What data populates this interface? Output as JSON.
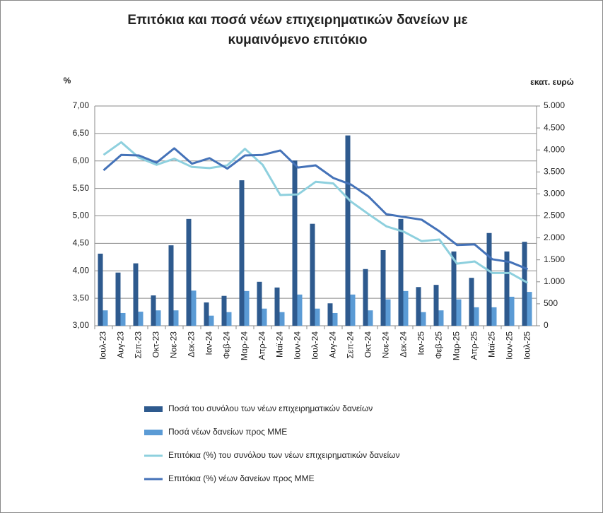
{
  "chart_data": {
    "type": "bar",
    "title": "Επιτόκια και ποσά νέων επιχειρηματικών δανείων με κυμαινόμενο επιτόκιο",
    "y_label": "%",
    "y2_label": "εκατ. ευρώ",
    "categories": [
      "Ιουλ-23",
      "Αυγ-23",
      "Σεπ-23",
      "Οκτ-23",
      "Νοε-23",
      "Δεκ-23",
      "Ιαν-24",
      "Φεβ-24",
      "Μαρ-24",
      "Απρ-24",
      "Μαϊ-24",
      "Ιουν-24",
      "Ιουλ-24",
      "Αυγ-24",
      "Σεπ-24",
      "Οκτ-24",
      "Νοε-24",
      "Δεκ-24",
      "Ιαν-25",
      "Φεβ-25",
      "Μαρ-25",
      "Απρ-25",
      "Μαϊ-25",
      "Ιουν-25",
      "Ιουλ-25"
    ],
    "series": [
      {
        "name": "Ποσά του συνόλου των νέων επιχειρηματικών δανείων",
        "type": "bar",
        "axis": "y2",
        "color": "#2e5a8e",
        "values": [
          1640,
          1210,
          1420,
          690,
          1830,
          2430,
          530,
          680,
          3310,
          1000,
          870,
          3760,
          2320,
          510,
          4330,
          1290,
          1720,
          2430,
          880,
          930,
          1690,
          1090,
          2110,
          1690,
          1910
        ]
      },
      {
        "name": "Ποσά νέων δανείων προς ΜΜΕ",
        "type": "bar",
        "axis": "y2",
        "color": "#5b9bd5",
        "values": [
          350,
          290,
          320,
          350,
          350,
          800,
          230,
          310,
          790,
          390,
          310,
          710,
          390,
          290,
          710,
          350,
          600,
          790,
          310,
          350,
          600,
          420,
          420,
          660,
          770
        ]
      },
      {
        "name": "Επιτόκια (%) του συνόλου των νέων επιχειρηματικών δανείων",
        "type": "line",
        "color": "#8ed0de",
        "values": [
          6.11,
          6.34,
          6.06,
          5.93,
          6.04,
          5.89,
          5.87,
          5.92,
          6.22,
          5.93,
          5.38,
          5.39,
          5.62,
          5.59,
          5.26,
          5.03,
          4.81,
          4.71,
          4.54,
          4.57,
          4.13,
          4.17,
          3.96,
          3.96,
          3.78
        ]
      },
      {
        "name": "Επιτόκια (%) νέων δανείων προς ΜΜΕ",
        "type": "line",
        "color": "#4472b8",
        "values": [
          5.83,
          6.11,
          6.1,
          5.97,
          6.23,
          5.95,
          6.05,
          5.86,
          6.1,
          6.11,
          6.19,
          5.88,
          5.92,
          5.69,
          5.57,
          5.35,
          5.03,
          4.98,
          4.93,
          4.72,
          4.47,
          4.48,
          4.21,
          4.16,
          4.03
        ]
      }
    ],
    "ylim": [
      3,
      7
    ],
    "yticks": [
      {
        "value": 3,
        "label": "3,00"
      },
      {
        "value": 3.5,
        "label": "3,50"
      },
      {
        "value": 4,
        "label": "4,00"
      },
      {
        "value": 4.5,
        "label": "4,50"
      },
      {
        "value": 5,
        "label": "5,00"
      },
      {
        "value": 5.5,
        "label": "5,50"
      },
      {
        "value": 6,
        "label": "6,00"
      },
      {
        "value": 6.5,
        "label": "6,50"
      },
      {
        "value": 7,
        "label": "7,00"
      }
    ],
    "y2lim": [
      0,
      5000
    ],
    "y2ticks": [
      0,
      500,
      {
        "value": 1000,
        "label": "1.000"
      },
      {
        "value": 1500,
        "label": "1.500"
      },
      {
        "value": 2000,
        "label": "2.000"
      },
      {
        "value": 2500,
        "label": "2.500"
      },
      {
        "value": 3000,
        "label": "3.000"
      },
      {
        "value": 3500,
        "label": "3.500"
      },
      {
        "value": 4000,
        "label": "4.000"
      },
      {
        "value": 4500,
        "label": "4.500"
      },
      {
        "value": 5000,
        "label": "5.000"
      }
    ],
    "grid": true
  }
}
